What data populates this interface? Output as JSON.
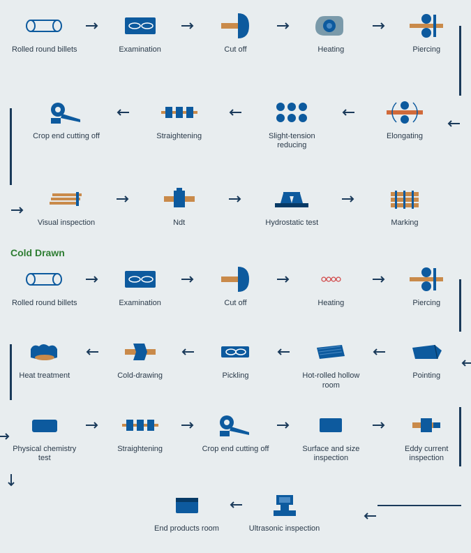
{
  "colors": {
    "primary": "#0d5a9e",
    "dark": "#073a66",
    "accent": "#c98a4a",
    "bg": "#e8edef",
    "text": "#2a3a4a",
    "title": "#2e7d32",
    "arrow": "#1a3a5a"
  },
  "section1": {
    "rows": [
      {
        "dir": "right",
        "steps": [
          {
            "label": "Rolled round billets",
            "icon": "billet"
          },
          {
            "label": "Examination",
            "icon": "exam"
          },
          {
            "label": "Cut off",
            "icon": "cutoff"
          },
          {
            "label": "Heating",
            "icon": "heating"
          },
          {
            "label": "Piercing",
            "icon": "piercing"
          }
        ]
      },
      {
        "dir": "left",
        "steps": [
          {
            "label": "Crop end cutting off",
            "icon": "cropend"
          },
          {
            "label": "Straightening",
            "icon": "straighten"
          },
          {
            "label": "Slight-tension reducing",
            "icon": "tension"
          },
          {
            "label": "Elongating",
            "icon": "elongate"
          }
        ]
      },
      {
        "dir": "right",
        "steps": [
          {
            "label": "Visual inspection",
            "icon": "visual"
          },
          {
            "label": "Ndt",
            "icon": "ndt"
          },
          {
            "label": "Hydrostatic test",
            "icon": "hydro"
          },
          {
            "label": "Marking",
            "icon": "marking"
          }
        ]
      }
    ]
  },
  "section2": {
    "title": "Cold Drawn",
    "rows": [
      {
        "dir": "right",
        "steps": [
          {
            "label": "Rolled round billets",
            "icon": "billet"
          },
          {
            "label": "Examination",
            "icon": "exam"
          },
          {
            "label": "Cut off",
            "icon": "cutoff"
          },
          {
            "label": "Heating",
            "icon": "heating2"
          },
          {
            "label": "Piercing",
            "icon": "piercing"
          }
        ]
      },
      {
        "dir": "left",
        "steps": [
          {
            "label": "Heat treatment",
            "icon": "heattreat"
          },
          {
            "label": "Cold-drawing",
            "icon": "colddraw"
          },
          {
            "label": "Pickling",
            "icon": "pickling"
          },
          {
            "label": "Hot-rolled hollow room",
            "icon": "hotrolled"
          },
          {
            "label": "Pointing",
            "icon": "pointing"
          }
        ]
      },
      {
        "dir": "right",
        "steps": [
          {
            "label": "Physical chemistry test",
            "icon": "physchem"
          },
          {
            "label": "Straightening",
            "icon": "straighten"
          },
          {
            "label": "Crop end cutting off",
            "icon": "cropend"
          },
          {
            "label": "Surface and size inspection",
            "icon": "surface"
          },
          {
            "label": "Eddy current inspection",
            "icon": "eddy"
          }
        ]
      },
      {
        "dir": "left",
        "center": true,
        "steps": [
          {
            "label": "End products room",
            "icon": "endprod"
          },
          {
            "label": "Ultrasonic inspection",
            "icon": "ultrasonic"
          }
        ]
      }
    ]
  }
}
